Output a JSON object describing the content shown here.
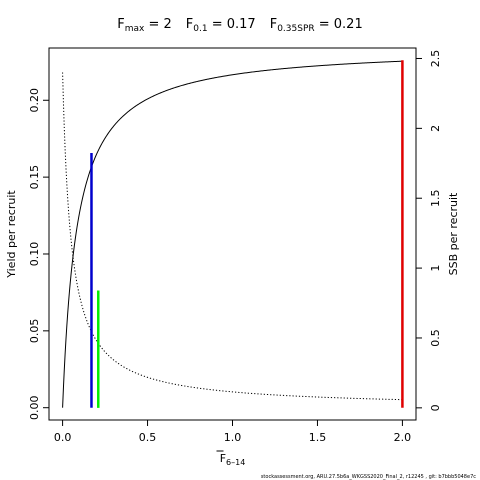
{
  "chart_data": {
    "type": "line",
    "title_parts": [
      {
        "main": "F",
        "sub": "max",
        "rest": " = 2"
      },
      {
        "main": "F",
        "sub": "0.1",
        "rest": " = 0.17"
      },
      {
        "main": "F",
        "sub": "0.35SPR",
        "rest": " = 0.21"
      }
    ],
    "xlabel": {
      "main": "F",
      "sub": "6–14"
    },
    "ylabel_left": "Yield per recruit",
    "ylabel_right": "SSB per recruit",
    "xlim": [
      -0.08,
      2.08
    ],
    "ylim_left": [
      -0.008,
      0.234
    ],
    "ylim_right": [
      -0.087,
      2.575
    ],
    "x_ticks": [
      "0.0",
      "0.5",
      "1.0",
      "1.5",
      "2.0"
    ],
    "y_ticks_left": [
      "0.00",
      "0.05",
      "0.10",
      "0.15",
      "0.20"
    ],
    "y_ticks_right": [
      "0",
      "0.5",
      "1",
      "1.5",
      "2",
      "2.5"
    ],
    "ypr_model": {
      "ymax": 0.235,
      "k": 0.085
    },
    "spr_model": {
      "r0": 2.4,
      "c": 0.05
    },
    "series": [
      {
        "name": "Yield per recruit",
        "axis": "left",
        "style": "solid",
        "color": "#000000"
      },
      {
        "name": "SSB per recruit",
        "axis": "right",
        "style": "dotted",
        "color": "#000000"
      }
    ],
    "reference_lines": [
      {
        "label": "F0.1",
        "x": 0.17,
        "color": "#0000CD",
        "axis": "left",
        "y_top": 0.1657
      },
      {
        "label": "F0.35SPR",
        "x": 0.21,
        "color": "#00EE00",
        "axis": "right",
        "y_top": 0.84
      },
      {
        "label": "Fmax",
        "x": 2.0,
        "color": "#E00000",
        "axis": "left",
        "y_top": 0.226
      }
    ],
    "footer": "stockassessment.org, ARU.27.5b6a_WKGSS2020_Final_2, r12245 , git: b7bbb5048e7c"
  }
}
